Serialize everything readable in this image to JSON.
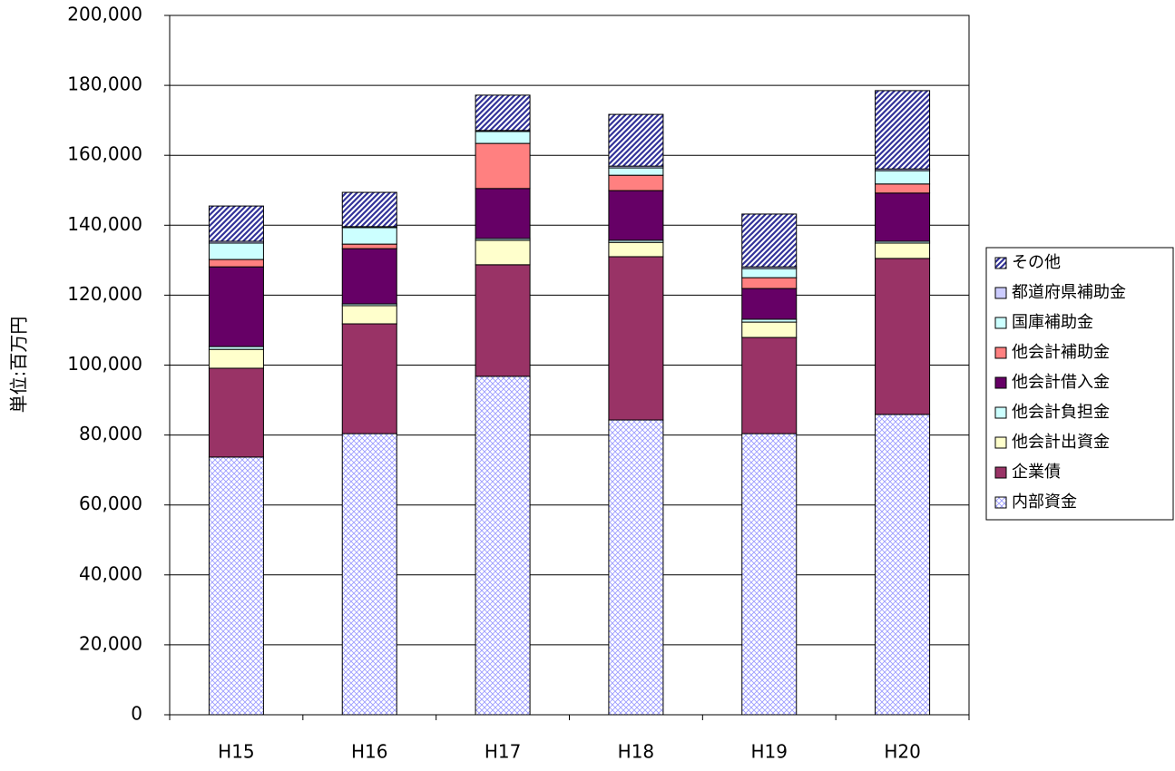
{
  "chart_data": {
    "type": "stacked-bar",
    "y_axis_label": "単位:百万円",
    "categories": [
      "H15",
      "H16",
      "H17",
      "H18",
      "H19",
      "H20"
    ],
    "series": [
      {
        "name": "内部資金",
        "color": "#9999ff",
        "pattern": "crosshatch",
        "values": [
          73700,
          80400,
          96800,
          84300,
          80400,
          85900
        ]
      },
      {
        "name": "企業債",
        "color": "#993366",
        "values": [
          25400,
          31400,
          31900,
          46700,
          27500,
          44600
        ]
      },
      {
        "name": "他会計出資金",
        "color": "#ffffcc",
        "values": [
          5400,
          5200,
          7000,
          4100,
          4400,
          4400
        ]
      },
      {
        "name": "他会計負担金",
        "color": "#ccffff",
        "values": [
          800,
          500,
          500,
          600,
          800,
          500
        ]
      },
      {
        "name": "他会計借入金",
        "color": "#660066",
        "values": [
          22800,
          15800,
          14300,
          14200,
          8800,
          13800
        ]
      },
      {
        "name": "他会計補助金",
        "color": "#ff8080",
        "values": [
          2100,
          1300,
          12900,
          4400,
          3100,
          2600
        ]
      },
      {
        "name": "国庫補助金",
        "color": "#ccffff",
        "values": [
          4700,
          4700,
          3400,
          2100,
          2600,
          3800
        ]
      },
      {
        "name": "都道府県補助金",
        "color": "#ccccff",
        "values": [
          500,
          300,
          300,
          500,
          500,
          500
        ]
      },
      {
        "name": "その他",
        "color": "#333399",
        "pattern": "hatch",
        "values": [
          10100,
          9800,
          10100,
          14800,
          15100,
          22400
        ]
      }
    ],
    "ylim": [
      0,
      200000
    ],
    "yticks": [
      0,
      {
        "value": 20000,
        "label": "20,000"
      },
      {
        "value": 40000,
        "label": "40,000"
      },
      {
        "value": 60000,
        "label": "60,000"
      },
      {
        "value": 80000,
        "label": "80,000"
      },
      {
        "value": 100000,
        "label": "100,000"
      },
      {
        "value": 120000,
        "label": "120,000"
      },
      {
        "value": 140000,
        "label": "140,000"
      },
      {
        "value": 160000,
        "label": "160,000"
      },
      {
        "value": 180000,
        "label": "180,000"
      },
      {
        "value": 200000,
        "label": "200,000"
      }
    ],
    "grid": true,
    "legend": "right"
  }
}
